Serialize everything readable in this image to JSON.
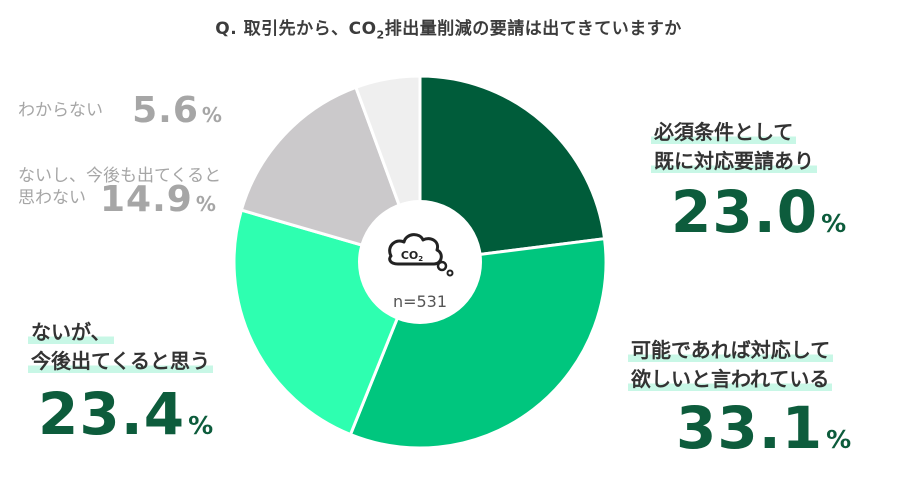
{
  "title": {
    "prefix": "Q.  取引先から、CO",
    "sub": "2",
    "suffix": "排出量削減の要請は出てきていますか"
  },
  "center": {
    "icon_text": "CO2",
    "n_label": "n=531"
  },
  "colors": {
    "required": "#005c3a",
    "want": "#00c67e",
    "will": "#2effb0",
    "wont": "#cbc9cb",
    "unknown": "#efefef"
  },
  "chart_data": {
    "type": "pie",
    "title": "Q. 取引先から、CO2排出量削減の要請は出てきていますか",
    "n": 531,
    "slices": [
      {
        "label": "必須条件として既に対応要請あり",
        "value": 23.0
      },
      {
        "label": "可能であれば対応して欲しいと言われている",
        "value": 33.1
      },
      {
        "label": "ないが、今後出てくると思う",
        "value": 23.4
      },
      {
        "label": "ないし、今後も出てくると思わない",
        "value": 14.9
      },
      {
        "label": "わからない",
        "value": 5.6
      }
    ]
  },
  "labels": {
    "required": {
      "line1": "必須条件として",
      "line2": "既に対応要請あり",
      "num": "23.0",
      "pct": "%"
    },
    "want": {
      "line1": "可能であれば対応して",
      "line2": "欲しいと言われている",
      "num": "33.1",
      "pct": "%"
    },
    "will": {
      "line1": "ないが、",
      "line2": "今後出てくると思う",
      "num": "23.4",
      "pct": "%"
    },
    "wont": {
      "line1": "ないし、今後も出てくると",
      "line2": "思わない",
      "num": "14.9",
      "pct": "%"
    },
    "unknown": {
      "line1": "わからない",
      "num": "5.6",
      "pct": "%"
    }
  }
}
